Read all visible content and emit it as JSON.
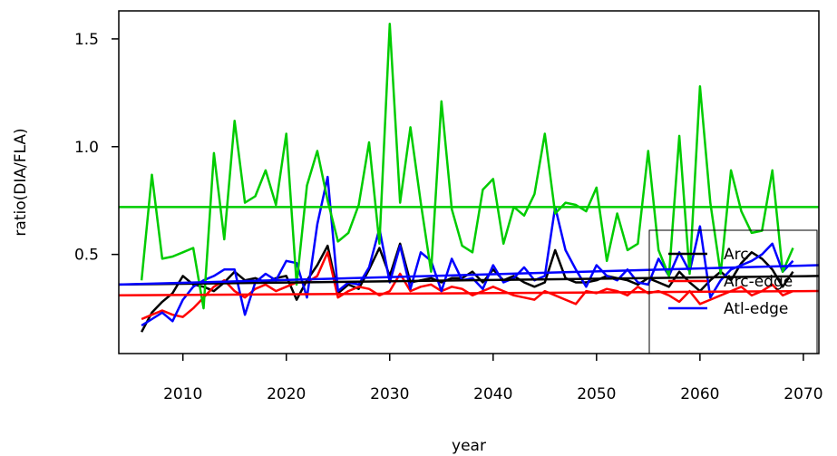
{
  "chart_data": {
    "type": "line",
    "title": "",
    "xlabel": "year",
    "ylabel": "ratio(DIA/FLA)",
    "xlim": [
      2003.8,
      2071.5
    ],
    "ylim": [
      0.04,
      1.63
    ],
    "xticks": [
      2010,
      2020,
      2030,
      2040,
      2050,
      2060,
      2070
    ],
    "yticks": [
      0.5,
      1.0,
      1.5
    ],
    "ytick_labels": [
      "0.5",
      "1.0",
      "1.5"
    ],
    "grid": false,
    "legend_position": "bottom-right",
    "x": [
      2006,
      2007,
      2008,
      2009,
      2010,
      2011,
      2012,
      2013,
      2014,
      2015,
      2016,
      2017,
      2018,
      2019,
      2020,
      2021,
      2022,
      2023,
      2024,
      2025,
      2026,
      2027,
      2028,
      2029,
      2030,
      2031,
      2032,
      2033,
      2034,
      2035,
      2036,
      2037,
      2038,
      2039,
      2040,
      2041,
      2042,
      2043,
      2044,
      2045,
      2046,
      2047,
      2048,
      2049,
      2050,
      2051,
      2052,
      2053,
      2054,
      2055,
      2056,
      2057,
      2058,
      2059,
      2060,
      2061,
      2062,
      2063,
      2064,
      2065,
      2066,
      2067,
      2068,
      2069
    ],
    "series": [
      {
        "name": "Arc",
        "color": "#000000",
        "values": [
          0.14,
          0.23,
          0.28,
          0.32,
          0.4,
          0.36,
          0.35,
          0.33,
          0.37,
          0.42,
          0.38,
          0.39,
          0.37,
          0.39,
          0.4,
          0.29,
          0.38,
          0.45,
          0.54,
          0.32,
          0.36,
          0.34,
          0.43,
          0.53,
          0.4,
          0.55,
          0.37,
          0.38,
          0.39,
          0.37,
          0.39,
          0.39,
          0.42,
          0.37,
          0.43,
          0.38,
          0.4,
          0.37,
          0.35,
          0.37,
          0.52,
          0.39,
          0.37,
          0.37,
          0.38,
          0.4,
          0.39,
          0.38,
          0.36,
          0.39,
          0.37,
          0.35,
          0.42,
          0.37,
          0.33,
          0.38,
          0.42,
          0.38,
          0.46,
          0.51,
          0.48,
          0.43,
          0.35,
          0.42
        ],
        "trend": [
          0.36,
          0.4
        ]
      },
      {
        "name": "Arc-edge",
        "color": "#ff0000",
        "values": [
          0.2,
          0.22,
          0.24,
          0.22,
          0.21,
          0.25,
          0.3,
          0.35,
          0.38,
          0.33,
          0.3,
          0.34,
          0.36,
          0.33,
          0.35,
          0.37,
          0.37,
          0.4,
          0.51,
          0.3,
          0.33,
          0.35,
          0.34,
          0.31,
          0.33,
          0.41,
          0.33,
          0.35,
          0.36,
          0.33,
          0.35,
          0.34,
          0.31,
          0.33,
          0.35,
          0.33,
          0.31,
          0.3,
          0.29,
          0.33,
          0.31,
          0.29,
          0.27,
          0.33,
          0.32,
          0.34,
          0.33,
          0.31,
          0.35,
          0.32,
          0.33,
          0.31,
          0.28,
          0.33,
          0.27,
          0.29,
          0.31,
          0.33,
          0.35,
          0.31,
          0.33,
          0.36,
          0.31,
          0.33
        ],
        "trend": [
          0.31,
          0.33
        ]
      },
      {
        "name": "Atl-edge",
        "color": "#0000ff",
        "values": [
          0.17,
          0.2,
          0.23,
          0.19,
          0.29,
          0.35,
          0.38,
          0.4,
          0.43,
          0.43,
          0.22,
          0.37,
          0.41,
          0.38,
          0.47,
          0.46,
          0.3,
          0.64,
          0.86,
          0.33,
          0.37,
          0.36,
          0.44,
          0.62,
          0.37,
          0.54,
          0.34,
          0.51,
          0.47,
          0.33,
          0.48,
          0.38,
          0.39,
          0.34,
          0.45,
          0.37,
          0.39,
          0.44,
          0.38,
          0.4,
          0.72,
          0.52,
          0.43,
          0.35,
          0.45,
          0.4,
          0.38,
          0.43,
          0.37,
          0.36,
          0.48,
          0.4,
          0.51,
          0.42,
          0.63,
          0.3,
          0.38,
          0.43,
          0.45,
          0.47,
          0.5,
          0.55,
          0.42,
          0.47
        ],
        "trend": [
          0.36,
          0.45
        ]
      },
      {
        "name": "",
        "color": "#00cc00",
        "values": [
          0.38,
          0.87,
          0.48,
          0.49,
          0.51,
          0.53,
          0.25,
          0.97,
          0.57,
          1.12,
          0.74,
          0.77,
          0.89,
          0.73,
          1.06,
          0.36,
          0.82,
          0.98,
          0.75,
          0.56,
          0.6,
          0.73,
          1.02,
          0.55,
          1.57,
          0.74,
          1.09,
          0.74,
          0.42,
          1.21,
          0.71,
          0.54,
          0.51,
          0.8,
          0.85,
          0.55,
          0.72,
          0.68,
          0.78,
          1.06,
          0.69,
          0.74,
          0.73,
          0.7,
          0.81,
          0.47,
          0.69,
          0.52,
          0.55,
          0.98,
          0.52,
          0.4,
          1.05,
          0.41,
          1.28,
          0.74,
          0.41,
          0.89,
          0.7,
          0.6,
          0.61,
          0.89,
          0.42,
          0.53
        ],
        "trend": [
          0.72,
          0.72
        ]
      }
    ]
  }
}
